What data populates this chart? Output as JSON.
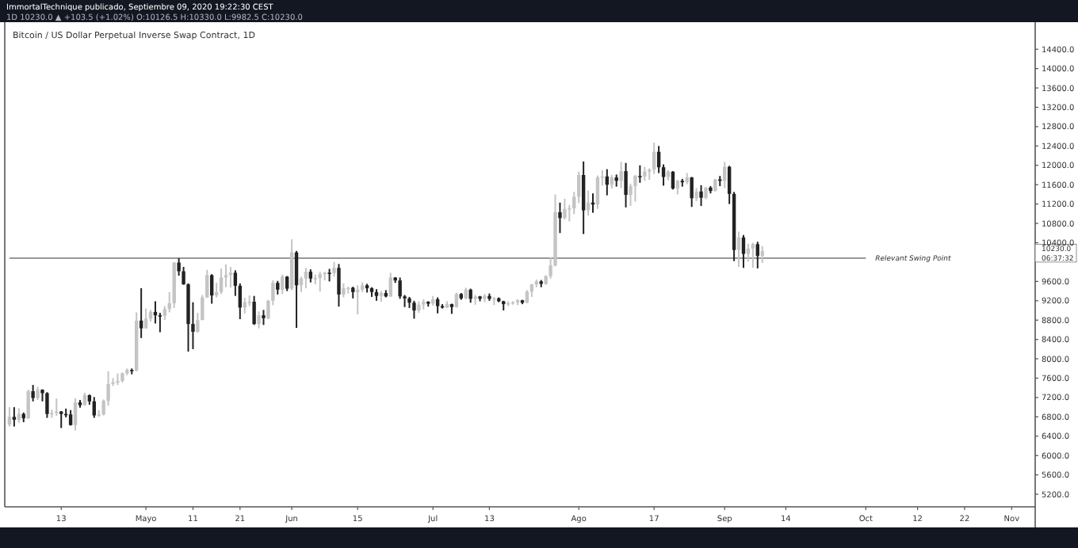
{
  "chart_data": {
    "type": "candlestick",
    "title": "Bitcoin / US Dollar Perpetual Inverse Swap Contract, 1D",
    "annotations": [
      "ImmortalTechnique publicado, Septiembre 09, 2020 19:22:30 CEST",
      "1D 10230.0 ▲ +103.5 (+1.02%) O:10126.5 H:10330.0 L:9982.5 C:10230.0"
    ],
    "colors": [
      "#c4c4c4",
      "#222222",
      "#c4c4c4",
      "#222222",
      "#c4c4c4",
      "#222222",
      "#c4c4c4",
      "#222222",
      "#222222",
      "#c4c4c4",
      "#c4c4c4",
      "#222222",
      "#222222",
      "#222222",
      "#c4c4c4",
      "#222222",
      "#c4c4c4",
      "#222222",
      "#222222",
      "#c4c4c4",
      "#c4c4c4",
      "#c4c4c4",
      "#c4c4c4",
      "#c4c4c4",
      "#c4c4c4",
      "#c4c4c4",
      "#222222",
      "#c4c4c4",
      "#222222",
      "#c4c4c4",
      "#c4c4c4",
      "#222222",
      "#222222",
      "#c4c4c4",
      "#c4c4c4",
      "#c4c4c4",
      "#222222",
      "#222222",
      "#222222",
      "#222222",
      "#c4c4c4",
      "#c4c4c4",
      "#c4c4c4",
      "#222222",
      "#c4c4c4",
      "#c4c4c4",
      "#c4c4c4",
      "#c4c4c4",
      "#222222",
      "#222222",
      "#c4c4c4",
      "#c4c4c4",
      "#222222",
      "#c4c4c4",
      "#222222",
      "#c4c4c4",
      "#c4c4c4",
      "#222222",
      "#c4c4c4",
      "#222222",
      "#c4c4c4",
      "#222222",
      "#c4c4c4",
      "#c4c4c4",
      "#222222",
      "#c4c4c4",
      "#c4c4c4",
      "#c4c4c4",
      "#222222",
      "#c4c4c4",
      "#222222",
      "#c4c4c4",
      "#c4c4c4",
      "#222222",
      "#c4c4c4",
      "#c4c4c4",
      "#222222",
      "#222222",
      "#222222",
      "#c4c4c4",
      "#222222",
      "#c4c4c4",
      "#222222",
      "#222222",
      "#222222",
      "#222222",
      "#222222",
      "#c4c4c4",
      "#c4c4c4",
      "#222222",
      "#c4c4c4",
      "#222222",
      "#222222",
      "#c4c4c4",
      "#222222",
      "#c4c4c4",
      "#222222",
      "#c4c4c4",
      "#222222",
      "#c4c4c4",
      "#222222",
      "#c4c4c4",
      "#222222",
      "#c4c4c4",
      "#222222",
      "#222222",
      "#c4c4c4",
      "#c4c4c4",
      "#c4c4c4",
      "#222222",
      "#c4c4c4",
      "#c4c4c4",
      "#c4c4c4",
      "#222222",
      "#c4c4c4",
      "#c4c4c4",
      "#c4c4c4",
      "#222222",
      "#c4c4c4",
      "#c4c4c4",
      "#c4c4c4",
      "#c4c4c4",
      "#222222",
      "#c4c4c4",
      "#222222",
      "#c4c4c4",
      "#c4c4c4",
      "#222222",
      "#c4c4c4",
      "#222222",
      "#c4c4c4",
      "#222222",
      "#c4c4c4",
      "#c4c4c4",
      "#222222",
      "#c4c4c4",
      "#c4c4c4",
      "#c4c4c4",
      "#222222",
      "#222222",
      "#c4c4c4",
      "#222222",
      "#c4c4c4",
      "#222222",
      "#c4c4c4",
      "#222222",
      "#c4c4c4",
      "#222222",
      "#c4c4c4",
      "#222222",
      "#c4c4c4",
      "#222222",
      "#c4c4c4",
      "#222222",
      "#222222",
      "#c4c4c4",
      "#222222",
      "#c4c4c4",
      "#c4c4c4",
      "#222222",
      "#c4c4c4"
    ],
    "grid": false,
    "ref_lines": [
      {
        "axis": "y",
        "value": 10080,
        "label": "Relevant Swing Point",
        "color": "#777777"
      }
    ],
    "xlim": [
      "2020-04-01",
      "2020-11-06"
    ],
    "xticks": [
      {
        "value": "2020-04-13",
        "label": "13"
      },
      {
        "value": "2020-05-01",
        "label": "Mayo"
      },
      {
        "value": "2020-05-11",
        "label": "11"
      },
      {
        "value": "2020-05-21",
        "label": "21"
      },
      {
        "value": "2020-06-01",
        "label": "Jun"
      },
      {
        "value": "2020-06-15",
        "label": "15"
      },
      {
        "value": "2020-07-01",
        "label": "Jul"
      },
      {
        "value": "2020-07-13",
        "label": "13"
      },
      {
        "value": "2020-08-01",
        "label": "Ago"
      },
      {
        "value": "2020-08-17",
        "label": "17"
      },
      {
        "value": "2020-09-01",
        "label": "Sep"
      },
      {
        "value": "2020-09-14",
        "label": "14"
      },
      {
        "value": "2020-10-01",
        "label": "Oct"
      },
      {
        "value": "2020-10-12",
        "label": "12"
      },
      {
        "value": "2020-10-22",
        "label": "22"
      },
      {
        "value": "2020-11-01",
        "label": "Nov"
      }
    ],
    "ylim": [
      4940,
      14960
    ],
    "yticks": [
      {
        "value": 5200,
        "label": "5200.0"
      },
      {
        "value": 5600,
        "label": "5600.0"
      },
      {
        "value": 6000,
        "label": "6000.0"
      },
      {
        "value": 6400,
        "label": "6400.0"
      },
      {
        "value": 6800,
        "label": "6800.0"
      },
      {
        "value": 7200,
        "label": "7200.0"
      },
      {
        "value": 7600,
        "label": "7600.0"
      },
      {
        "value": 8000,
        "label": "8000.0"
      },
      {
        "value": 8400,
        "label": "8400.0"
      },
      {
        "value": 8800,
        "label": "8800.0"
      },
      {
        "value": 9200,
        "label": "9200.0"
      },
      {
        "value": 9600,
        "label": "9600.0"
      },
      {
        "value": 10230,
        "label": "10230.0\n06:37:32"
      },
      {
        "value": 10400,
        "label": "10400.0"
      },
      {
        "value": 10800,
        "label": "10800.0"
      },
      {
        "value": 11200,
        "label": "11200.0"
      },
      {
        "value": 11600,
        "label": "11600.0"
      },
      {
        "value": 12000,
        "label": "12000.0"
      },
      {
        "value": 12400,
        "label": "12400.0"
      },
      {
        "value": 12800,
        "label": "12800.0"
      },
      {
        "value": 13200,
        "label": "13200.0"
      },
      {
        "value": 13600,
        "label": "13600.0"
      },
      {
        "value": 14000,
        "label": "14000.0"
      },
      {
        "value": 14400,
        "label": "14400.0"
      }
    ],
    "x": [
      "2020-04-02",
      "2020-04-03",
      "2020-04-04",
      "2020-04-05",
      "2020-04-06",
      "2020-04-07",
      "2020-04-08",
      "2020-04-09",
      "2020-04-10",
      "2020-04-11",
      "2020-04-12",
      "2020-04-13",
      "2020-04-14",
      "2020-04-15",
      "2020-04-16",
      "2020-04-17",
      "2020-04-18",
      "2020-04-19",
      "2020-04-20",
      "2020-04-21",
      "2020-04-22",
      "2020-04-23",
      "2020-04-24",
      "2020-04-25",
      "2020-04-26",
      "2020-04-27",
      "2020-04-28",
      "2020-04-29",
      "2020-04-30",
      "2020-05-01",
      "2020-05-02",
      "2020-05-03",
      "2020-05-04",
      "2020-05-05",
      "2020-05-06",
      "2020-05-07",
      "2020-05-08",
      "2020-05-09",
      "2020-05-10",
      "2020-05-11",
      "2020-05-12",
      "2020-05-13",
      "2020-05-14",
      "2020-05-15",
      "2020-05-16",
      "2020-05-17",
      "2020-05-18",
      "2020-05-19",
      "2020-05-20",
      "2020-05-21",
      "2020-05-22",
      "2020-05-23",
      "2020-05-24",
      "2020-05-25",
      "2020-05-26",
      "2020-05-27",
      "2020-05-28",
      "2020-05-29",
      "2020-05-30",
      "2020-05-31",
      "2020-06-01",
      "2020-06-02",
      "2020-06-03",
      "2020-06-04",
      "2020-06-05",
      "2020-06-06",
      "2020-06-07",
      "2020-06-08",
      "2020-06-09",
      "2020-06-10",
      "2020-06-11",
      "2020-06-12",
      "2020-06-13",
      "2020-06-14",
      "2020-06-15",
      "2020-06-16",
      "2020-06-17",
      "2020-06-18",
      "2020-06-19",
      "2020-06-20",
      "2020-06-21",
      "2020-06-22",
      "2020-06-23",
      "2020-06-24",
      "2020-06-25",
      "2020-06-26",
      "2020-06-27",
      "2020-06-28",
      "2020-06-29",
      "2020-06-30",
      "2020-07-01",
      "2020-07-02",
      "2020-07-03",
      "2020-07-04",
      "2020-07-05",
      "2020-07-06",
      "2020-07-07",
      "2020-07-08",
      "2020-07-09",
      "2020-07-10",
      "2020-07-11",
      "2020-07-12",
      "2020-07-13",
      "2020-07-14",
      "2020-07-15",
      "2020-07-16",
      "2020-07-17",
      "2020-07-18",
      "2020-07-19",
      "2020-07-20",
      "2020-07-21",
      "2020-07-22",
      "2020-07-23",
      "2020-07-24",
      "2020-07-25",
      "2020-07-26",
      "2020-07-27",
      "2020-07-28",
      "2020-07-29",
      "2020-07-30",
      "2020-07-31",
      "2020-08-01",
      "2020-08-02",
      "2020-08-03",
      "2020-08-04",
      "2020-08-05",
      "2020-08-06",
      "2020-08-07",
      "2020-08-08",
      "2020-08-09",
      "2020-08-10",
      "2020-08-11",
      "2020-08-12",
      "2020-08-13",
      "2020-08-14",
      "2020-08-15",
      "2020-08-16",
      "2020-08-17",
      "2020-08-18",
      "2020-08-19",
      "2020-08-20",
      "2020-08-21",
      "2020-08-22",
      "2020-08-23",
      "2020-08-24",
      "2020-08-25",
      "2020-08-26",
      "2020-08-27",
      "2020-08-28",
      "2020-08-29",
      "2020-08-30",
      "2020-08-31",
      "2020-09-01",
      "2020-09-02",
      "2020-09-03",
      "2020-09-04",
      "2020-09-05",
      "2020-09-06",
      "2020-09-07",
      "2020-09-08",
      "2020-09-09"
    ],
    "ohlc": [
      [
        6640,
        7000,
        6600,
        6800
      ],
      [
        6800,
        7000,
        6600,
        6740
      ],
      [
        6740,
        6980,
        6680,
        6860
      ],
      [
        6860,
        6890,
        6690,
        6770
      ],
      [
        6770,
        7360,
        6760,
        7330
      ],
      [
        7330,
        7460,
        7120,
        7190
      ],
      [
        7190,
        7420,
        7150,
        7360
      ],
      [
        7360,
        7370,
        7120,
        7290
      ],
      [
        7290,
        7310,
        6780,
        6860
      ],
      [
        6860,
        6950,
        6780,
        6880
      ],
      [
        6880,
        7180,
        6820,
        6910
      ],
      [
        6910,
        6920,
        6570,
        6860
      ],
      [
        6860,
        6970,
        6790,
        6850
      ],
      [
        6850,
        6940,
        6620,
        6630
      ],
      [
        6630,
        7180,
        6520,
        7100
      ],
      [
        7100,
        7150,
        6990,
        7040
      ],
      [
        7040,
        7300,
        7030,
        7250
      ],
      [
        7250,
        7260,
        7050,
        7120
      ],
      [
        7120,
        7210,
        6780,
        6830
      ],
      [
        6830,
        6940,
        6800,
        6850
      ],
      [
        6850,
        7160,
        6830,
        7130
      ],
      [
        7130,
        7740,
        7030,
        7480
      ],
      [
        7480,
        7600,
        7440,
        7510
      ],
      [
        7510,
        7700,
        7460,
        7540
      ],
      [
        7540,
        7720,
        7510,
        7700
      ],
      [
        7700,
        7800,
        7660,
        7770
      ],
      [
        7770,
        7800,
        7680,
        7760
      ],
      [
        7760,
        8960,
        7740,
        8790
      ],
      [
        8790,
        9460,
        8430,
        8630
      ],
      [
        8630,
        9040,
        8630,
        8830
      ],
      [
        8830,
        9010,
        8770,
        8970
      ],
      [
        8970,
        9190,
        8730,
        8900
      ],
      [
        8900,
        8950,
        8550,
        8890
      ],
      [
        8890,
        9090,
        8800,
        9030
      ],
      [
        9030,
        9380,
        8960,
        9150
      ],
      [
        9150,
        10000,
        9050,
        9990
      ],
      [
        9990,
        10080,
        9720,
        9810
      ],
      [
        9810,
        9900,
        9530,
        9540
      ],
      [
        9540,
        9560,
        8150,
        8720
      ],
      [
        8720,
        9170,
        8200,
        8560
      ],
      [
        8560,
        8950,
        8540,
        8800
      ],
      [
        8800,
        9320,
        8800,
        9270
      ],
      [
        9270,
        9840,
        9260,
        9730
      ],
      [
        9730,
        9750,
        9140,
        9310
      ],
      [
        9310,
        9570,
        9270,
        9380
      ],
      [
        9380,
        9870,
        9340,
        9680
      ],
      [
        9680,
        9950,
        9480,
        9730
      ],
      [
        9730,
        9900,
        9470,
        9780
      ],
      [
        9780,
        9830,
        9300,
        9510
      ],
      [
        9510,
        9560,
        8820,
        9060
      ],
      [
        9060,
        9260,
        8940,
        9170
      ],
      [
        9170,
        9310,
        9090,
        9180
      ],
      [
        9180,
        9300,
        8700,
        8720
      ],
      [
        8720,
        8980,
        8630,
        8900
      ],
      [
        8900,
        9010,
        8700,
        8840
      ],
      [
        8840,
        9220,
        8820,
        9200
      ],
      [
        9200,
        9620,
        9110,
        9570
      ],
      [
        9570,
        9610,
        9330,
        9430
      ],
      [
        9430,
        9740,
        9340,
        9700
      ],
      [
        9700,
        9710,
        9400,
        9450
      ],
      [
        9450,
        10470,
        9420,
        10200
      ],
      [
        10200,
        10230,
        8640,
        9520
      ],
      [
        9520,
        9700,
        9380,
        9660
      ],
      [
        9660,
        9880,
        9460,
        9800
      ],
      [
        9800,
        9850,
        9580,
        9660
      ],
      [
        9660,
        9740,
        9540,
        9670
      ],
      [
        9670,
        9800,
        9390,
        9750
      ],
      [
        9750,
        9800,
        9620,
        9780
      ],
      [
        9780,
        9860,
        9600,
        9770
      ],
      [
        9770,
        10000,
        9700,
        9880
      ],
      [
        9880,
        9960,
        9080,
        9330
      ],
      [
        9330,
        9560,
        9270,
        9460
      ],
      [
        9460,
        9490,
        9350,
        9470
      ],
      [
        9470,
        9490,
        9250,
        9380
      ],
      [
        9380,
        9520,
        8920,
        9430
      ],
      [
        9430,
        9580,
        9380,
        9520
      ],
      [
        9520,
        9550,
        9370,
        9460
      ],
      [
        9460,
        9480,
        9280,
        9380
      ],
      [
        9380,
        9440,
        9200,
        9300
      ],
      [
        9300,
        9400,
        9180,
        9360
      ],
      [
        9360,
        9420,
        9270,
        9290
      ],
      [
        9290,
        9780,
        9280,
        9680
      ],
      [
        9680,
        9690,
        9570,
        9620
      ],
      [
        9620,
        9680,
        9240,
        9290
      ],
      [
        9290,
        9320,
        9070,
        9250
      ],
      [
        9250,
        9280,
        9050,
        9160
      ],
      [
        9160,
        9200,
        8830,
        9000
      ],
      [
        9000,
        9190,
        8950,
        9120
      ],
      [
        9120,
        9230,
        9020,
        9180
      ],
      [
        9180,
        9190,
        9080,
        9140
      ],
      [
        9140,
        9300,
        9100,
        9230
      ],
      [
        9230,
        9270,
        8940,
        9090
      ],
      [
        9090,
        9130,
        9040,
        9060
      ],
      [
        9060,
        9190,
        9050,
        9130
      ],
      [
        9130,
        9140,
        8930,
        9070
      ],
      [
        9070,
        9370,
        9060,
        9340
      ],
      [
        9340,
        9360,
        9220,
        9250
      ],
      [
        9250,
        9470,
        9230,
        9430
      ],
      [
        9430,
        9450,
        9160,
        9240
      ],
      [
        9240,
        9320,
        9120,
        9290
      ],
      [
        9290,
        9300,
        9190,
        9240
      ],
      [
        9240,
        9340,
        9170,
        9300
      ],
      [
        9300,
        9350,
        9200,
        9240
      ],
      [
        9240,
        9280,
        9110,
        9250
      ],
      [
        9250,
        9270,
        9170,
        9190
      ],
      [
        9190,
        9200,
        9000,
        9130
      ],
      [
        9130,
        9190,
        9090,
        9150
      ],
      [
        9150,
        9190,
        9120,
        9170
      ],
      [
        9170,
        9230,
        9110,
        9210
      ],
      [
        9210,
        9220,
        9130,
        9160
      ],
      [
        9160,
        9420,
        9150,
        9390
      ],
      [
        9390,
        9550,
        9280,
        9540
      ],
      [
        9540,
        9640,
        9480,
        9600
      ],
      [
        9600,
        9630,
        9480,
        9550
      ],
      [
        9550,
        9730,
        9530,
        9710
      ],
      [
        9710,
        10100,
        9660,
        9930
      ],
      [
        9930,
        11400,
        9910,
        11030
      ],
      [
        11030,
        11230,
        10600,
        10910
      ],
      [
        10910,
        11310,
        10880,
        11100
      ],
      [
        11100,
        11180,
        10840,
        11110
      ],
      [
        11110,
        11450,
        10990,
        11350
      ],
      [
        11350,
        11870,
        11220,
        11800
      ],
      [
        11800,
        12080,
        10580,
        11070
      ],
      [
        11070,
        11480,
        10960,
        11230
      ],
      [
        11230,
        11420,
        11020,
        11190
      ],
      [
        11190,
        11790,
        11100,
        11750
      ],
      [
        11750,
        11900,
        11580,
        11770
      ],
      [
        11770,
        11920,
        11380,
        11600
      ],
      [
        11600,
        11800,
        11520,
        11750
      ],
      [
        11750,
        11810,
        11560,
        11680
      ],
      [
        11680,
        12070,
        11530,
        11880
      ],
      [
        11880,
        12050,
        11130,
        11390
      ],
      [
        11390,
        11620,
        11160,
        11570
      ],
      [
        11570,
        11800,
        11250,
        11780
      ],
      [
        11780,
        12000,
        11640,
        11770
      ],
      [
        11770,
        11970,
        11680,
        11870
      ],
      [
        11870,
        11940,
        11700,
        11910
      ],
      [
        11910,
        12470,
        11820,
        12280
      ],
      [
        12280,
        12400,
        11840,
        11960
      ],
      [
        11960,
        12020,
        11580,
        11760
      ],
      [
        11760,
        11900,
        11690,
        11870
      ],
      [
        11870,
        11880,
        11500,
        11520
      ],
      [
        11520,
        11700,
        11400,
        11680
      ],
      [
        11680,
        11720,
        11560,
        11650
      ],
      [
        11650,
        11840,
        11610,
        11750
      ],
      [
        11750,
        11760,
        11140,
        11320
      ],
      [
        11320,
        11530,
        11260,
        11460
      ],
      [
        11460,
        11590,
        11160,
        11330
      ],
      [
        11330,
        11550,
        11300,
        11540
      ],
      [
        11540,
        11570,
        11420,
        11470
      ],
      [
        11470,
        11720,
        11460,
        11710
      ],
      [
        11710,
        11780,
        11570,
        11680
      ],
      [
        11680,
        12070,
        11530,
        11970
      ],
      [
        11970,
        11990,
        11200,
        11410
      ],
      [
        11410,
        11450,
        10020,
        10250
      ],
      [
        10250,
        10630,
        9900,
        10510
      ],
      [
        10510,
        10560,
        9880,
        10170
      ],
      [
        10170,
        10380,
        10010,
        10280
      ],
      [
        10280,
        10400,
        9880,
        10370
      ],
      [
        10370,
        10420,
        9870,
        10130
      ],
      [
        10126.5,
        10330,
        9982.5,
        10230
      ]
    ]
  }
}
